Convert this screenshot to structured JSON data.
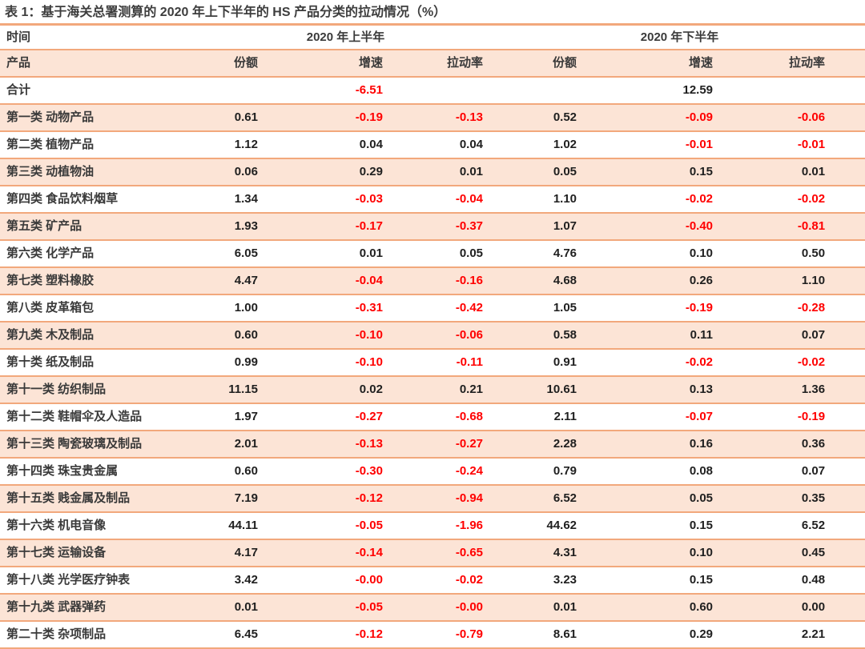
{
  "title": "表 1：基于海关总署测算的 2020 年上下半年的 HS 产品分类的拉动情况（%）",
  "colors": {
    "stripe_background": "#fce4d6",
    "rule_line": "#f2a87c",
    "negative_value": "#ff0000",
    "positive_value": "#1f1f1f"
  },
  "table": {
    "header": {
      "time_label": "时间",
      "product_label": "产品",
      "groups": [
        "2020 年上半年",
        "2020 年下半年"
      ],
      "subheaders": [
        "份额",
        "增速",
        "拉动率",
        "份额",
        "增速",
        "拉动率"
      ]
    },
    "rows": [
      {
        "label": "合计",
        "values": [
          "",
          "-6.51",
          "",
          "",
          "12.59",
          ""
        ]
      },
      {
        "label": "第一类 动物产品",
        "values": [
          "0.61",
          "-0.19",
          "-0.13",
          "0.52",
          "-0.09",
          "-0.06"
        ]
      },
      {
        "label": "第二类 植物产品",
        "values": [
          "1.12",
          "0.04",
          "0.04",
          "1.02",
          "-0.01",
          "-0.01"
        ]
      },
      {
        "label": "第三类 动植物油",
        "values": [
          "0.06",
          "0.29",
          "0.01",
          "0.05",
          "0.15",
          "0.01"
        ]
      },
      {
        "label": "第四类 食品饮料烟草",
        "values": [
          "1.34",
          "-0.03",
          "-0.04",
          "1.10",
          "-0.02",
          "-0.02"
        ]
      },
      {
        "label": "第五类 矿产品",
        "values": [
          "1.93",
          "-0.17",
          "-0.37",
          "1.07",
          "-0.40",
          "-0.81"
        ]
      },
      {
        "label": "第六类 化学产品",
        "values": [
          "6.05",
          "0.01",
          "0.05",
          "4.76",
          "0.10",
          "0.50"
        ]
      },
      {
        "label": "第七类 塑料橡胶",
        "values": [
          "4.47",
          "-0.04",
          "-0.16",
          "4.68",
          "0.26",
          "1.10"
        ]
      },
      {
        "label": "第八类 皮革箱包",
        "values": [
          "1.00",
          "-0.31",
          "-0.42",
          "1.05",
          "-0.19",
          "-0.28"
        ]
      },
      {
        "label": "第九类 木及制品",
        "values": [
          "0.60",
          "-0.10",
          "-0.06",
          "0.58",
          "0.11",
          "0.07"
        ]
      },
      {
        "label": "第十类 纸及制品",
        "values": [
          "0.99",
          "-0.10",
          "-0.11",
          "0.91",
          "-0.02",
          "-0.02"
        ]
      },
      {
        "label": "第十一类 纺织制品",
        "values": [
          "11.15",
          "0.02",
          "0.21",
          "10.61",
          "0.13",
          "1.36"
        ]
      },
      {
        "label": "第十二类 鞋帽伞及人造品",
        "values": [
          "1.97",
          "-0.27",
          "-0.68",
          "2.11",
          "-0.07",
          "-0.19"
        ]
      },
      {
        "label": "第十三类 陶瓷玻璃及制品",
        "values": [
          "2.01",
          "-0.13",
          "-0.27",
          "2.28",
          "0.16",
          "0.36"
        ]
      },
      {
        "label": "第十四类 珠宝贵金属",
        "values": [
          "0.60",
          "-0.30",
          "-0.24",
          "0.79",
          "0.08",
          "0.07"
        ]
      },
      {
        "label": "第十五类 贱金属及制品",
        "values": [
          "7.19",
          "-0.12",
          "-0.94",
          "6.52",
          "0.05",
          "0.35"
        ]
      },
      {
        "label": "第十六类 机电音像",
        "values": [
          "44.11",
          "-0.05",
          "-1.96",
          "44.62",
          "0.15",
          "6.52"
        ]
      },
      {
        "label": "第十七类 运输设备",
        "values": [
          "4.17",
          "-0.14",
          "-0.65",
          "4.31",
          "0.10",
          "0.45"
        ]
      },
      {
        "label": "第十八类 光学医疗钟表",
        "values": [
          "3.42",
          "-0.00",
          "-0.02",
          "3.23",
          "0.15",
          "0.48"
        ]
      },
      {
        "label": "第十九类 武器弹药",
        "values": [
          "0.01",
          "-0.05",
          "-0.00",
          "0.01",
          "0.60",
          "0.00"
        ]
      },
      {
        "label": "第二十类 杂项制品",
        "values": [
          "6.45",
          "-0.12",
          "-0.79",
          "8.61",
          "0.29",
          "2.21"
        ]
      }
    ]
  }
}
